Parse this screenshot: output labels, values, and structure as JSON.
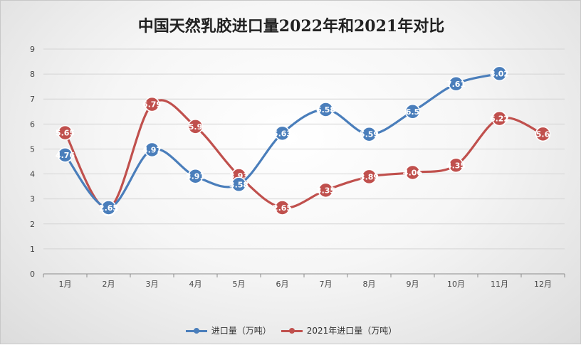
{
  "chart_data": {
    "type": "line",
    "title": "中国天然乳胶进口量2022年和2021年对比",
    "categories": [
      "1月",
      "2月",
      "3月",
      "4月",
      "5月",
      "6月",
      "7月",
      "8月",
      "9月",
      "10月",
      "11月",
      "12月"
    ],
    "series": [
      {
        "name": "进口量（万吨）",
        "color": "#4a7ebb",
        "values": [
          4.76,
          2.65,
          4.97,
          3.91,
          3.58,
          5.63,
          6.58,
          5.59,
          6.5,
          7.61,
          8.02,
          null
        ]
      },
      {
        "name": "2021年进口量（万吨）",
        "color": "#c0504d",
        "values": [
          5.65,
          2.62,
          6.79,
          5.9,
          3.93,
          2.65,
          3.35,
          3.89,
          4.06,
          4.35,
          6.22,
          5.6
        ]
      }
    ],
    "ylim": [
      0,
      9
    ],
    "yticks": [
      0,
      1,
      2,
      3,
      4,
      5,
      6,
      7,
      8,
      9
    ],
    "grid": true,
    "legend_position": "bottom"
  }
}
